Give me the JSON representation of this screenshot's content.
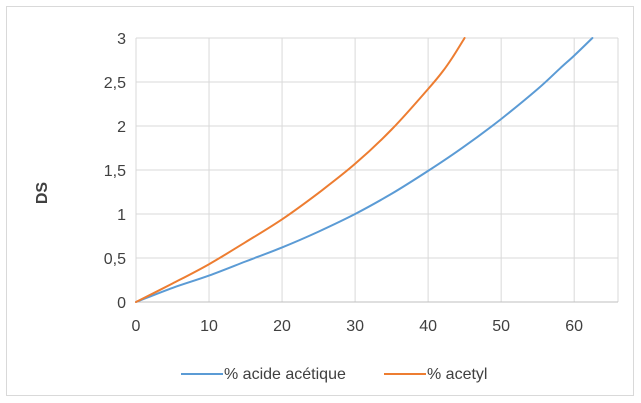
{
  "chart_data": {
    "type": "line",
    "title": "",
    "xlabel": "",
    "ylabel": "DS",
    "xlim": [
      0,
      66
    ],
    "ylim": [
      0,
      3
    ],
    "x_ticks": [
      0,
      10,
      20,
      30,
      40,
      50,
      60
    ],
    "x_tick_labels": [
      "0",
      "10",
      "20",
      "30",
      "40",
      "50",
      "60"
    ],
    "y_ticks": [
      0,
      0.5,
      1,
      1.5,
      2,
      2.5,
      3
    ],
    "y_tick_labels": [
      "0",
      "0,5",
      "1",
      "1,5",
      "2",
      "2,5",
      "3"
    ],
    "grid": true,
    "legend_position": "bottom",
    "series": [
      {
        "name": "% acide acétique",
        "color": "#5b9bd5",
        "points": [
          [
            0,
            0
          ],
          [
            5,
            0.16
          ],
          [
            10,
            0.3
          ],
          [
            15,
            0.46
          ],
          [
            20,
            0.62
          ],
          [
            25,
            0.8
          ],
          [
            30,
            1.0
          ],
          [
            35,
            1.23
          ],
          [
            40,
            1.49
          ],
          [
            45,
            1.77
          ],
          [
            50,
            2.08
          ],
          [
            55,
            2.42
          ],
          [
            58,
            2.65
          ],
          [
            60,
            2.8
          ],
          [
            62.5,
            3.0
          ]
        ]
      },
      {
        "name": "% acetyl",
        "color": "#ed7d31",
        "points": [
          [
            0,
            0
          ],
          [
            5,
            0.21
          ],
          [
            10,
            0.43
          ],
          [
            15,
            0.68
          ],
          [
            20,
            0.94
          ],
          [
            25,
            1.24
          ],
          [
            30,
            1.57
          ],
          [
            35,
            1.96
          ],
          [
            40,
            2.42
          ],
          [
            42,
            2.62
          ],
          [
            43.5,
            2.8
          ],
          [
            45,
            3.0
          ]
        ]
      }
    ]
  }
}
